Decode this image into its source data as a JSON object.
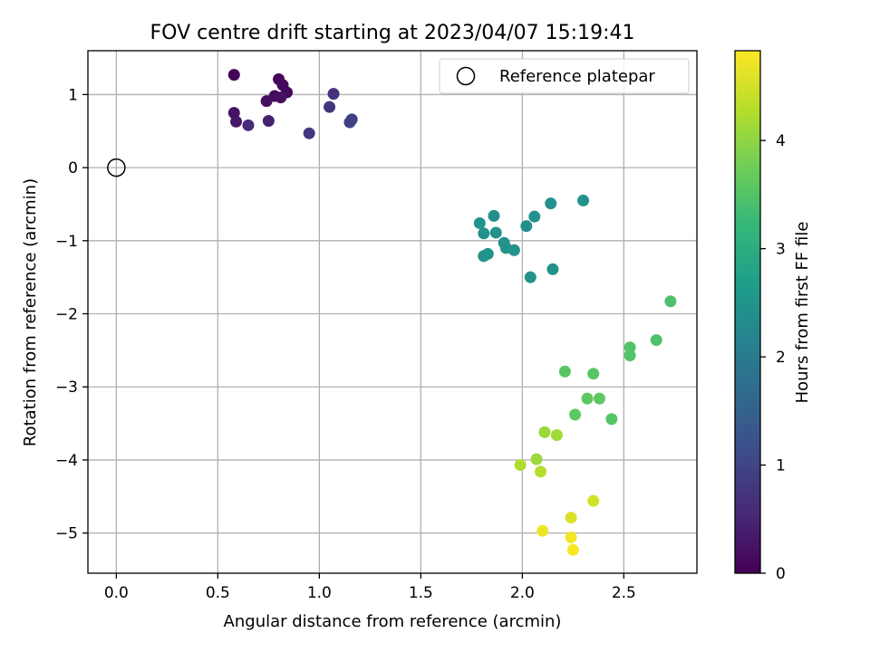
{
  "chart_data": {
    "type": "scatter",
    "title": "FOV centre drift starting at 2023/04/07 15:19:41",
    "xlabel": "Angular distance from reference (arcmin)",
    "ylabel": "Rotation from reference (arcmin)",
    "xlim": [
      -0.14,
      2.86
    ],
    "ylim": [
      -5.55,
      1.6
    ],
    "x_ticks": [
      0.0,
      0.5,
      1.0,
      1.5,
      2.0,
      2.5
    ],
    "x_tick_labels": [
      "0.0",
      "0.5",
      "1.0",
      "1.5",
      "2.0",
      "2.5"
    ],
    "y_ticks": [
      1,
      0,
      -1,
      -2,
      -3,
      -4,
      -5
    ],
    "y_tick_labels": [
      "1",
      "0",
      "−1",
      "−2",
      "−3",
      "−4",
      "−5"
    ],
    "grid": true,
    "legend": {
      "position": "top-right",
      "entries": [
        "Reference platepar"
      ]
    },
    "reference_point": {
      "x": 0.0,
      "y": 0.0,
      "label": "Reference platepar"
    },
    "colorbar": {
      "label": "Hours from first FF file",
      "colormap": "viridis",
      "range": [
        0,
        4.83
      ],
      "ticks": [
        0,
        1,
        2,
        3,
        4
      ],
      "tick_labels": [
        "0",
        "1",
        "2",
        "3",
        "4"
      ],
      "stops": [
        "#440154",
        "#482878",
        "#3e4989",
        "#31688e",
        "#26828e",
        "#1f9e89",
        "#35b779",
        "#6ece58",
        "#b5de2b",
        "#fde725"
      ]
    },
    "points": [
      {
        "x": 0.58,
        "y": 1.27,
        "hours": 0.05
      },
      {
        "x": 0.8,
        "y": 1.21,
        "hours": 0.07
      },
      {
        "x": 0.82,
        "y": 1.13,
        "hours": 0.1
      },
      {
        "x": 0.84,
        "y": 1.03,
        "hours": 0.12
      },
      {
        "x": 0.78,
        "y": 0.98,
        "hours": 0.15
      },
      {
        "x": 0.74,
        "y": 0.91,
        "hours": 0.18
      },
      {
        "x": 0.81,
        "y": 0.96,
        "hours": 0.22
      },
      {
        "x": 0.58,
        "y": 0.75,
        "hours": 0.26
      },
      {
        "x": 0.59,
        "y": 0.63,
        "hours": 0.3
      },
      {
        "x": 0.75,
        "y": 0.64,
        "hours": 0.45
      },
      {
        "x": 0.65,
        "y": 0.58,
        "hours": 0.6
      },
      {
        "x": 1.07,
        "y": 1.01,
        "hours": 0.7
      },
      {
        "x": 1.05,
        "y": 0.83,
        "hours": 0.75
      },
      {
        "x": 0.95,
        "y": 0.47,
        "hours": 0.8
      },
      {
        "x": 1.16,
        "y": 0.66,
        "hours": 0.9
      },
      {
        "x": 1.15,
        "y": 0.62,
        "hours": 0.95
      },
      {
        "x": 1.86,
        "y": -0.66,
        "hours": 2.4
      },
      {
        "x": 2.3,
        "y": -0.45,
        "hours": 2.45
      },
      {
        "x": 2.14,
        "y": -0.49,
        "hours": 2.45
      },
      {
        "x": 2.06,
        "y": -0.67,
        "hours": 2.45
      },
      {
        "x": 1.79,
        "y": -0.76,
        "hours": 2.5
      },
      {
        "x": 2.02,
        "y": -0.8,
        "hours": 2.4
      },
      {
        "x": 1.81,
        "y": -0.9,
        "hours": 2.45
      },
      {
        "x": 1.87,
        "y": -0.89,
        "hours": 2.45
      },
      {
        "x": 1.91,
        "y": -1.03,
        "hours": 2.45
      },
      {
        "x": 1.92,
        "y": -1.1,
        "hours": 2.45
      },
      {
        "x": 1.96,
        "y": -1.13,
        "hours": 2.45
      },
      {
        "x": 1.83,
        "y": -1.18,
        "hours": 2.5
      },
      {
        "x": 1.81,
        "y": -1.21,
        "hours": 2.45
      },
      {
        "x": 2.15,
        "y": -1.39,
        "hours": 2.45
      },
      {
        "x": 2.04,
        "y": -1.5,
        "hours": 2.45
      },
      {
        "x": 2.73,
        "y": -1.83,
        "hours": 3.45
      },
      {
        "x": 2.66,
        "y": -2.36,
        "hours": 3.45
      },
      {
        "x": 2.53,
        "y": -2.46,
        "hours": 3.5
      },
      {
        "x": 2.53,
        "y": -2.57,
        "hours": 3.5
      },
      {
        "x": 2.21,
        "y": -2.79,
        "hours": 3.55
      },
      {
        "x": 2.35,
        "y": -2.82,
        "hours": 3.55
      },
      {
        "x": 2.32,
        "y": -3.16,
        "hours": 3.6
      },
      {
        "x": 2.38,
        "y": -3.16,
        "hours": 3.6
      },
      {
        "x": 2.26,
        "y": -3.38,
        "hours": 3.6
      },
      {
        "x": 2.44,
        "y": -3.44,
        "hours": 3.55
      },
      {
        "x": 2.11,
        "y": -3.62,
        "hours": 4.1
      },
      {
        "x": 2.17,
        "y": -3.66,
        "hours": 4.15
      },
      {
        "x": 2.07,
        "y": -3.99,
        "hours": 4.1
      },
      {
        "x": 1.99,
        "y": -4.07,
        "hours": 4.25
      },
      {
        "x": 2.09,
        "y": -4.16,
        "hours": 4.3
      },
      {
        "x": 2.35,
        "y": -4.56,
        "hours": 4.5
      },
      {
        "x": 2.24,
        "y": -4.79,
        "hours": 4.55
      },
      {
        "x": 2.1,
        "y": -4.97,
        "hours": 4.7
      },
      {
        "x": 2.24,
        "y": -5.06,
        "hours": 4.75
      },
      {
        "x": 2.25,
        "y": -5.23,
        "hours": 4.8
      }
    ]
  }
}
